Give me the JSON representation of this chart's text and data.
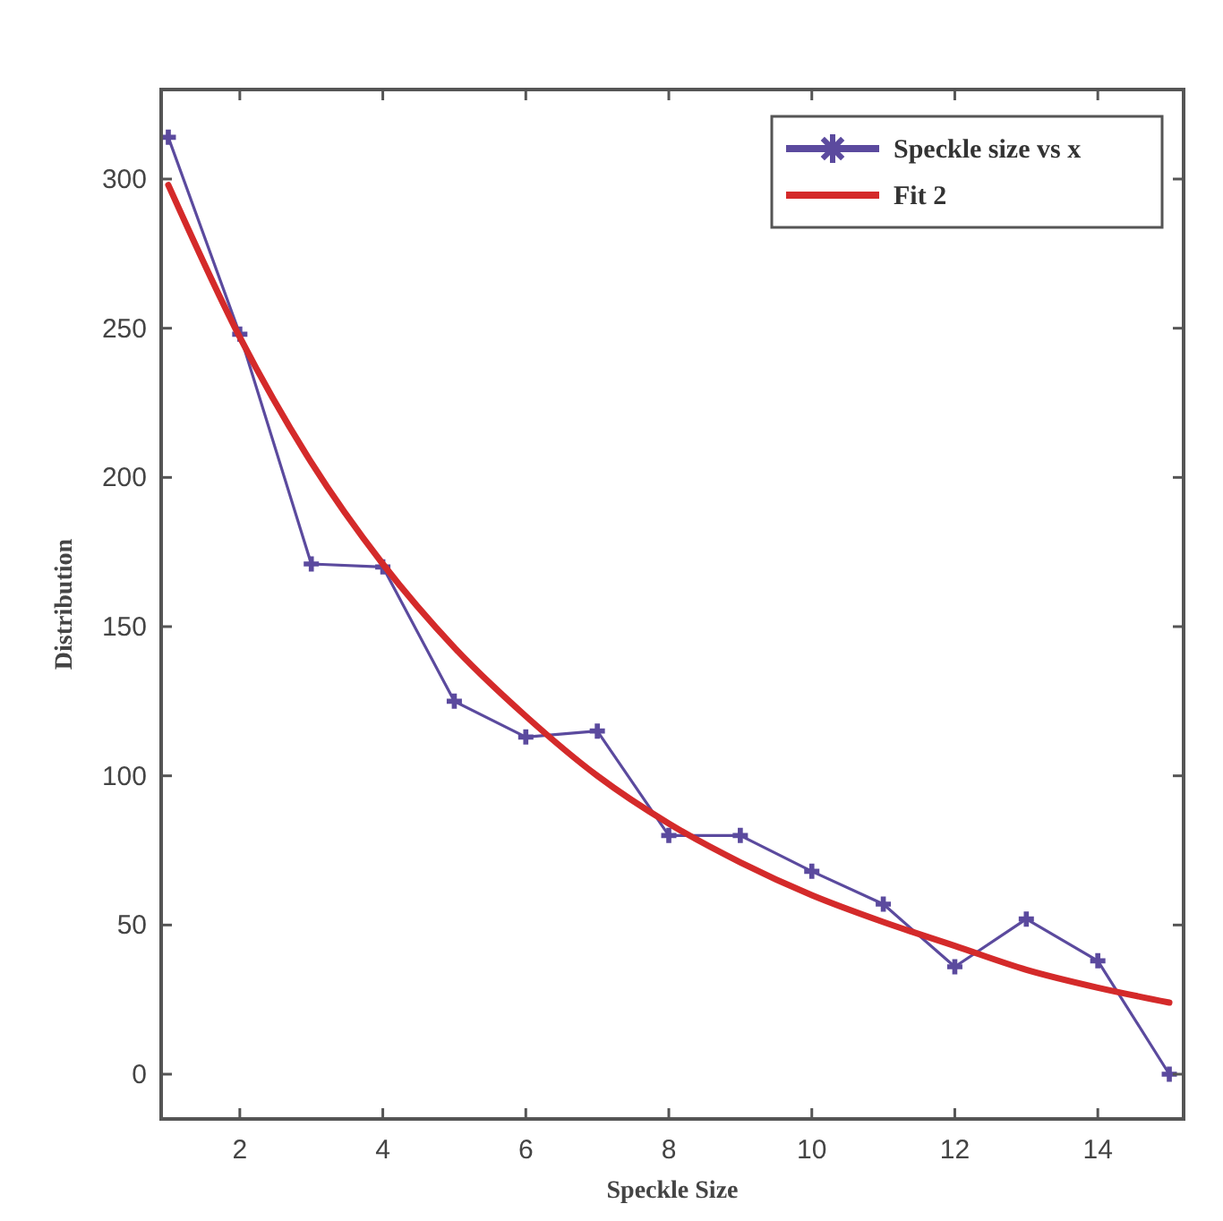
{
  "chart_data": {
    "type": "line",
    "xlabel": "Speckle Size",
    "ylabel": "Distribution",
    "xlim": [
      0.9,
      15.2
    ],
    "xticks": [
      2,
      4,
      6,
      8,
      10,
      12,
      14
    ],
    "ylim": [
      -15,
      330
    ],
    "yticks": [
      0,
      50,
      100,
      150,
      200,
      250,
      300
    ],
    "grid": false,
    "legend": "top right",
    "series": [
      {
        "name": "Speckle size vs x",
        "color": "#5b4a9e",
        "marker": "cross",
        "x": [
          1,
          2,
          3,
          4,
          5,
          6,
          7,
          8,
          9,
          10,
          11,
          12,
          13,
          14,
          15
        ],
        "values": [
          314,
          248,
          171,
          170,
          125,
          113,
          115,
          80,
          80,
          68,
          57,
          36,
          52,
          38,
          0
        ]
      },
      {
        "name": "Fit 2",
        "color": "#d42a2a",
        "marker": "none",
        "x": [
          1,
          2,
          3,
          4,
          5,
          6,
          7,
          8,
          9,
          10,
          11,
          12,
          13,
          14,
          15
        ],
        "values": [
          298,
          247,
          205,
          171,
          143,
          120,
          100,
          84,
          71,
          60,
          51,
          43,
          35,
          29,
          24
        ]
      }
    ]
  }
}
